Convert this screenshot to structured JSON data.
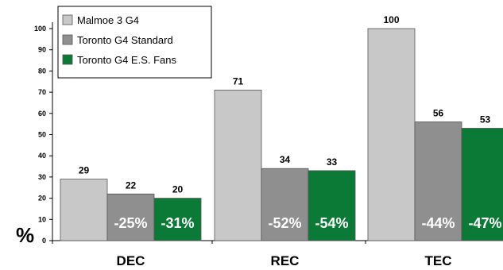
{
  "chart_data": {
    "type": "bar",
    "categories": [
      "DEC",
      "REC",
      "TEC"
    ],
    "series": [
      {
        "name": "Malmoe 3 G4",
        "color": "#c8c8c8",
        "values": [
          29,
          71,
          100
        ],
        "changes": [
          "",
          "",
          ""
        ]
      },
      {
        "name": "Toronto G4 Standard",
        "color": "#8f8f8f",
        "values": [
          22,
          34,
          56
        ],
        "changes": [
          "-25%",
          "-52%",
          "-44%"
        ]
      },
      {
        "name": "Toronto G4 E.S. Fans",
        "color": "#0a7a36",
        "values": [
          20,
          33,
          53
        ],
        "changes": [
          "-31%",
          "-54%",
          "-47%"
        ]
      }
    ],
    "ylabel": "%",
    "ylim": [
      0,
      100
    ],
    "yticks": [
      0,
      10,
      20,
      30,
      40,
      50,
      60,
      70,
      80,
      90,
      100
    ],
    "legend_position": "top-left",
    "grid": false
  }
}
